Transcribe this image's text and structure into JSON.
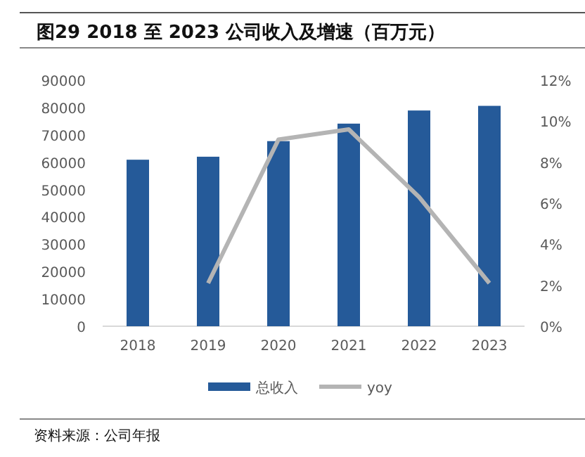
{
  "chart_data": {
    "type": "bar",
    "title": "图29  2018 至 2023 公司收入及增速（百万元）",
    "categories": [
      "2018",
      "2019",
      "2020",
      "2021",
      "2022",
      "2023"
    ],
    "series": [
      {
        "name": "总收入",
        "color": "#255a99",
        "values": [
          60900,
          62000,
          67700,
          74100,
          78900,
          80600
        ]
      },
      {
        "name": "yoy",
        "type": "line",
        "axis": "y2",
        "color": "#b4b4b4",
        "values": [
          null,
          2.1,
          9.1,
          9.6,
          6.3,
          2.1
        ]
      }
    ],
    "ylim": [
      0,
      90000
    ],
    "yticks": [
      0,
      10000,
      20000,
      30000,
      40000,
      50000,
      60000,
      70000,
      80000,
      90000
    ],
    "y2lim": [
      0,
      12
    ],
    "y2ticks": [
      {
        "value": 0,
        "label": "0%"
      },
      {
        "value": 2,
        "label": "2%"
      },
      {
        "value": 4,
        "label": "4%"
      },
      {
        "value": 6,
        "label": "6%"
      },
      {
        "value": 8,
        "label": "8%"
      },
      {
        "value": 10,
        "label": "10%"
      },
      {
        "value": 12,
        "label": "12%"
      }
    ],
    "legend": "bottom",
    "grid": false,
    "annotations": [
      "资料来源：公司年报"
    ]
  }
}
